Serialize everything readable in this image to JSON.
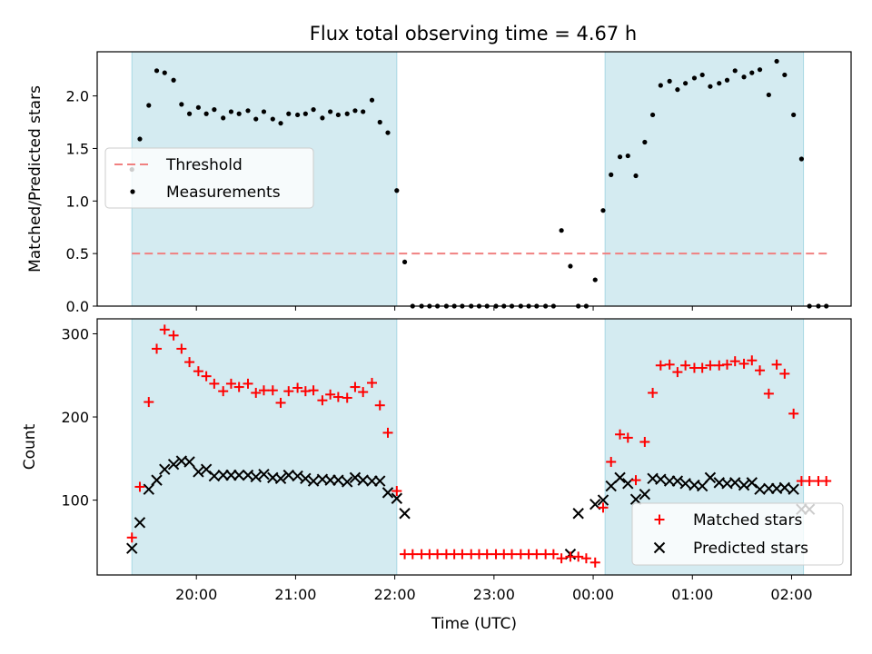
{
  "title": "Flux total observing time = 4.67 h",
  "colors": {
    "shade": "#d4ebf1",
    "shade_edge": "#a9d8e4",
    "threshold": "#f08080",
    "measure": "#000000",
    "matched": "#ff0000",
    "predicted": "#000000"
  },
  "chart_data": [
    {
      "type": "scatter",
      "panel": "top",
      "ylabel": "Matched/Predicted stars",
      "ylim": [
        0,
        2.42
      ],
      "xlim": [
        19.0,
        26.6
      ],
      "y_ticks": [
        0.0,
        0.5,
        1.0,
        1.5,
        2.0
      ],
      "y_tick_labels": [
        "0.0",
        "0.5",
        "1.0",
        "1.5",
        "2.0"
      ],
      "shaded_spans": [
        [
          19.35,
          22.02
        ],
        [
          24.12,
          26.12
        ]
      ],
      "legend": {
        "position": "center-left",
        "entries": [
          "Threshold",
          "Measurements"
        ]
      },
      "threshold": {
        "name": "Threshold",
        "y": 0.5,
        "x_range": [
          19.35,
          26.4
        ]
      },
      "measurements": {
        "name": "Measurements",
        "x": [
          19.35,
          19.43,
          19.52,
          19.6,
          19.68,
          19.77,
          19.85,
          19.93,
          20.02,
          20.1,
          20.18,
          20.27,
          20.35,
          20.43,
          20.52,
          20.6,
          20.68,
          20.77,
          20.85,
          20.93,
          21.02,
          21.1,
          21.18,
          21.27,
          21.35,
          21.43,
          21.52,
          21.6,
          21.68,
          21.77,
          21.85,
          21.93,
          22.02,
          22.1,
          22.18,
          22.27,
          22.35,
          22.43,
          22.52,
          22.6,
          22.68,
          22.77,
          22.85,
          22.93,
          23.02,
          23.1,
          23.18,
          23.27,
          23.35,
          23.43,
          23.52,
          23.6,
          23.68,
          23.77,
          23.85,
          23.93,
          24.02,
          24.1,
          24.18,
          24.27,
          24.35,
          24.43,
          24.52,
          24.6,
          24.68,
          24.77,
          24.85,
          24.93,
          25.02,
          25.1,
          25.18,
          25.27,
          25.35,
          25.43,
          25.52,
          25.6,
          25.68,
          25.77,
          25.85,
          25.93,
          26.02,
          26.1,
          26.18,
          26.27,
          26.35
        ],
        "y": [
          1.3,
          1.59,
          1.91,
          2.24,
          2.22,
          2.15,
          1.92,
          1.83,
          1.89,
          1.83,
          1.87,
          1.79,
          1.85,
          1.83,
          1.86,
          1.78,
          1.85,
          1.78,
          1.74,
          1.83,
          1.82,
          1.83,
          1.87,
          1.79,
          1.85,
          1.82,
          1.83,
          1.86,
          1.85,
          1.96,
          1.75,
          1.65,
          1.1,
          0.42,
          0.0,
          0.0,
          0.0,
          0.0,
          0.0,
          0.0,
          0.0,
          0.0,
          0.0,
          0.0,
          0.0,
          0.0,
          0.0,
          0.0,
          0.0,
          0.0,
          0.0,
          0.0,
          0.72,
          0.38,
          0.0,
          0.0,
          0.25,
          0.91,
          1.25,
          1.42,
          1.43,
          1.24,
          1.56,
          1.82,
          2.1,
          2.14,
          2.06,
          2.12,
          2.17,
          2.2,
          2.09,
          2.12,
          2.15,
          2.24,
          2.18,
          2.22,
          2.25,
          2.01,
          2.33,
          2.2,
          1.82,
          1.4,
          0.0,
          0.0,
          0.0
        ]
      }
    },
    {
      "type": "scatter",
      "panel": "bottom",
      "xlabel": "Time (UTC)",
      "ylabel": "Count",
      "ylim": [
        10,
        318
      ],
      "xlim": [
        19.0,
        26.6
      ],
      "y_ticks": [
        100,
        200,
        300
      ],
      "y_tick_labels": [
        "100",
        "200",
        "300"
      ],
      "x_ticks": [
        20,
        21,
        22,
        23,
        24,
        25,
        26
      ],
      "x_tick_labels": [
        "20:00",
        "21:00",
        "22:00",
        "23:00",
        "00:00",
        "01:00",
        "02:00"
      ],
      "shaded_spans": [
        [
          19.35,
          22.02
        ],
        [
          24.12,
          26.12
        ]
      ],
      "legend": {
        "position": "lower-right",
        "entries": [
          "Matched stars",
          "Predicted stars"
        ]
      },
      "series": [
        {
          "name": "Matched stars",
          "marker": "plus",
          "x": [
            19.35,
            19.43,
            19.52,
            19.6,
            19.68,
            19.77,
            19.85,
            19.93,
            20.02,
            20.1,
            20.18,
            20.27,
            20.35,
            20.43,
            20.52,
            20.6,
            20.68,
            20.77,
            20.85,
            20.93,
            21.02,
            21.1,
            21.18,
            21.27,
            21.35,
            21.43,
            21.52,
            21.6,
            21.68,
            21.77,
            21.85,
            21.93,
            22.02,
            22.1,
            22.18,
            22.27,
            22.35,
            22.43,
            22.52,
            22.6,
            22.68,
            22.77,
            22.85,
            22.93,
            23.02,
            23.1,
            23.18,
            23.27,
            23.35,
            23.43,
            23.52,
            23.6,
            23.68,
            23.77,
            23.85,
            23.93,
            24.02,
            24.1,
            24.18,
            24.27,
            24.35,
            24.43,
            24.52,
            24.6,
            24.68,
            24.77,
            24.85,
            24.93,
            25.02,
            25.1,
            25.18,
            25.27,
            25.35,
            25.43,
            25.52,
            25.6,
            25.68,
            25.77,
            25.85,
            25.93,
            26.02,
            26.1,
            26.18,
            26.27,
            26.35
          ],
          "y": [
            55,
            116,
            218,
            282,
            305,
            298,
            282,
            266,
            255,
            249,
            240,
            231,
            240,
            236,
            240,
            229,
            232,
            232,
            217,
            231,
            235,
            231,
            232,
            220,
            227,
            224,
            223,
            236,
            230,
            241,
            214,
            181,
            111,
            35,
            35,
            35,
            35,
            35,
            35,
            35,
            35,
            35,
            35,
            35,
            35,
            35,
            35,
            35,
            35,
            35,
            35,
            35,
            30,
            32,
            32,
            30,
            25,
            91,
            146,
            179,
            175,
            124,
            170,
            229,
            262,
            263,
            254,
            262,
            259,
            259,
            262,
            262,
            263,
            267,
            264,
            268,
            256,
            228,
            263,
            252,
            204,
            123,
            123,
            123,
            123
          ]
        },
        {
          "name": "Predicted stars",
          "marker": "x",
          "x": [
            19.35,
            19.43,
            19.52,
            19.6,
            19.68,
            19.77,
            19.85,
            19.93,
            20.02,
            20.1,
            20.18,
            20.27,
            20.35,
            20.43,
            20.52,
            20.6,
            20.68,
            20.77,
            20.85,
            20.93,
            21.02,
            21.1,
            21.18,
            21.27,
            21.35,
            21.43,
            21.52,
            21.6,
            21.68,
            21.77,
            21.85,
            21.93,
            22.02,
            22.1,
            23.77,
            23.85,
            24.02,
            24.1,
            24.18,
            24.27,
            24.35,
            24.43,
            24.52,
            24.6,
            24.68,
            24.77,
            24.85,
            24.93,
            25.02,
            25.1,
            25.18,
            25.27,
            25.35,
            25.43,
            25.52,
            25.6,
            25.68,
            25.77,
            25.85,
            25.93,
            26.02,
            26.1,
            26.18
          ],
          "y": [
            42,
            73,
            113,
            124,
            137,
            143,
            147,
            146,
            134,
            137,
            129,
            130,
            130,
            130,
            130,
            128,
            131,
            127,
            126,
            130,
            129,
            126,
            123,
            125,
            124,
            124,
            122,
            127,
            124,
            123,
            123,
            109,
            102,
            84,
            35,
            84,
            95,
            100,
            117,
            127,
            120,
            101,
            107,
            126,
            125,
            123,
            123,
            120,
            118,
            117,
            127,
            121,
            120,
            121,
            118,
            121,
            113,
            114,
            114,
            115,
            113,
            89,
            89
          ]
        }
      ]
    }
  ]
}
